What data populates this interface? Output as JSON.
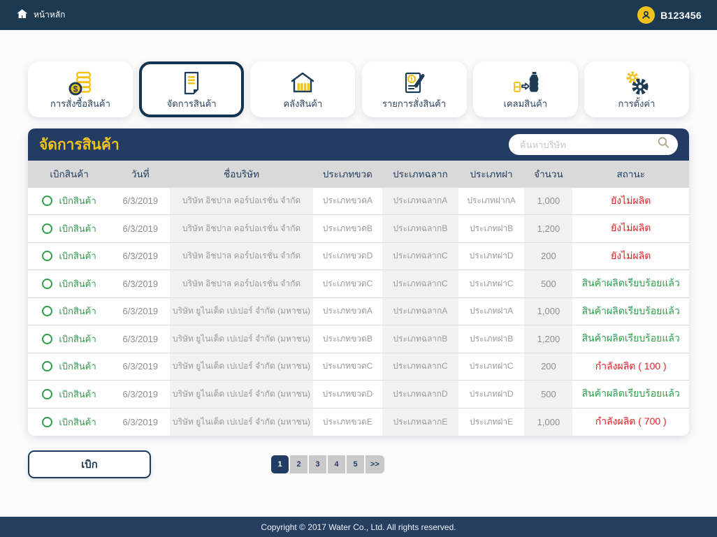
{
  "navbar": {
    "home_label": "หน้าหลัก",
    "user_id": "B123456"
  },
  "tabs": [
    {
      "label": "การสั่งซื้อสินค้า",
      "icon": "coins-icon",
      "active": false
    },
    {
      "label": "จัดการสินค้า",
      "icon": "document-icon",
      "active": true
    },
    {
      "label": "คลังสินค้า",
      "icon": "warehouse-icon",
      "active": false
    },
    {
      "label": "รายการสั่งสินค้า",
      "icon": "order-list-icon",
      "active": false
    },
    {
      "label": "เคลมสินค้า",
      "icon": "claim-bottle-icon",
      "active": false
    },
    {
      "label": "การตั้งค่า",
      "icon": "gears-icon",
      "active": false
    }
  ],
  "panel": {
    "title": "จัดการสินค้า",
    "search_placeholder": "ค้นหาบริษัท"
  },
  "table": {
    "headers": [
      "เบิกสินค้า",
      "วันที่",
      "ชื่อบริษัท",
      "ประเภทขวด",
      "ประเภทฉลาก",
      "ประเภทฝา",
      "จำนวน",
      "สถานะ"
    ],
    "rows": [
      {
        "action": "เบิกสินค้า",
        "date": "6/3/2019",
        "company": "บริษัท อิชปาล คอร์ปอเรชั่น จำกัด",
        "bottle_type": "ประเภทขวดA",
        "label_type": "ประเภทฉลากA",
        "cap_type": "ประเภทฝากA",
        "qty": "1,000",
        "status": "ยังไม่ผลิต",
        "state": "red"
      },
      {
        "action": "เบิกสินค้า",
        "date": "6/3/2019",
        "company": "บริษัท อิชปาล คอร์ปอเรชั่น จำกัด",
        "bottle_type": "ประเภทขวดB",
        "label_type": "ประเภทฉลากB",
        "cap_type": "ประเภทฝาB",
        "qty": "1,200",
        "status": "ยังไม่ผลิต",
        "state": "red"
      },
      {
        "action": "เบิกสินค้า",
        "date": "6/3/2019",
        "company": "บริษัท อิชปาล คอร์ปอเรชั่น จำกัด",
        "bottle_type": "ประเภทขวดD",
        "label_type": "ประเภทฉลากC",
        "cap_type": "ประเภทฝาD",
        "qty": "200",
        "status": "ยังไม่ผลิต",
        "state": "red"
      },
      {
        "action": "เบิกสินค้า",
        "date": "6/3/2019",
        "company": "บริษัท อิชปาล คอร์ปอเรชั่น จำกัด",
        "bottle_type": "ประเภทขวดC",
        "label_type": "ประเภทฉลากC",
        "cap_type": "ประเภทฝาC",
        "qty": "500",
        "status": "สินค้าผลิตเรียบร้อยแล้ว",
        "state": "green"
      },
      {
        "action": "เบิกสินค้า",
        "date": "6/3/2019",
        "company": "บริษัท ยูไนเต็ด เปเปอร์ จำกัด (มหาชน)",
        "bottle_type": "ประเภทขวดA",
        "label_type": "ประเภทฉลากA",
        "cap_type": "ประเภทฝาA",
        "qty": "1,000",
        "status": "สินค้าผลิตเรียบร้อยแล้ว",
        "state": "green"
      },
      {
        "action": "เบิกสินค้า",
        "date": "6/3/2019",
        "company": "บริษัท ยูไนเต็ด เปเปอร์ จำกัด (มหาชน)",
        "bottle_type": "ประเภทขวดB",
        "label_type": "ประเภทฉลากB",
        "cap_type": "ประเภทฝาB",
        "qty": "1,200",
        "status": "สินค้าผลิตเรียบร้อยแล้ว",
        "state": "green"
      },
      {
        "action": "เบิกสินค้า",
        "date": "6/3/2019",
        "company": "บริษัท ยูไนเต็ด เปเปอร์ จำกัด (มหาชน)",
        "bottle_type": "ประเภทขวดC",
        "label_type": "ประเภทฉลากC",
        "cap_type": "ประเภทฝาC",
        "qty": "200",
        "status": "กำลังผลิต ( 100 )",
        "state": "red"
      },
      {
        "action": "เบิกสินค้า",
        "date": "6/3/2019",
        "company": "บริษัท ยูไนเต็ด เปเปอร์ จำกัด (มหาชน)",
        "bottle_type": "ประเภทขวดD",
        "label_type": "ประเภทฉลากD",
        "cap_type": "ประเภทฝาD",
        "qty": "500",
        "status": "สินค้าผลิตเรียบร้อยแล้ว",
        "state": "green"
      },
      {
        "action": "เบิกสินค้า",
        "date": "6/3/2019",
        "company": "บริษัท ยูไนเต็ด เปเปอร์ จำกัด (มหาชน)",
        "bottle_type": "ประเภทขวดE",
        "label_type": "ประเภทฉลากE",
        "cap_type": "ประเภทฝาE",
        "qty": "1,000",
        "status": "กำลังผลิต ( 700 )",
        "state": "red"
      }
    ]
  },
  "actions": {
    "withdraw_label": "เบิก"
  },
  "pagination": {
    "items": [
      "1",
      "2",
      "3",
      "4",
      "5",
      ">>"
    ],
    "active": "1"
  },
  "footer": {
    "copyright": "Copyright © 2017 Water Co., Ltd. All rights reserved."
  },
  "colors": {
    "navbar": "#1b3a52",
    "panel_header": "#223c64",
    "accent_yellow": "#f1c21b",
    "green": "#2e9e4a",
    "red": "#e02020",
    "active_tab_border": "#14334d"
  }
}
